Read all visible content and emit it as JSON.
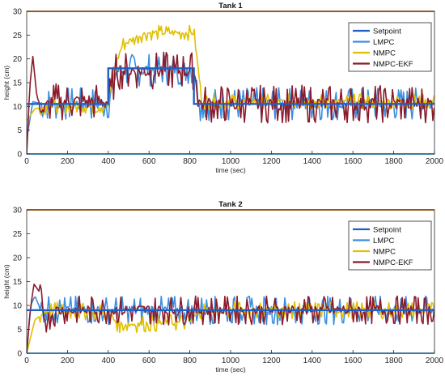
{
  "chart_data": [
    {
      "type": "line",
      "title": "Tank 1",
      "xlabel": "time (sec)",
      "ylabel": "height (cm)",
      "xlim": [
        0,
        2000
      ],
      "ylim": [
        0,
        30
      ],
      "xticks": [
        0,
        200,
        400,
        600,
        800,
        1000,
        1200,
        1400,
        1600,
        1800,
        2000
      ],
      "yticks": [
        0,
        5,
        10,
        15,
        20,
        25,
        30
      ],
      "grid": false,
      "legend_position": "top-right",
      "series": [
        {
          "name": "Setpoint",
          "color": "#1f5fc4",
          "x": [
            0,
            400,
            400,
            820,
            820,
            2000
          ],
          "y": [
            10.5,
            10.5,
            18,
            18,
            10.5,
            10.5
          ]
        },
        {
          "name": "LMPC",
          "color": "#3b8fe0",
          "noise": 3.5,
          "x": [
            0,
            30,
            80,
            400,
            440,
            820,
            850,
            2000
          ],
          "y": [
            3,
            11,
            10.5,
            10.5,
            17.5,
            18,
            10.5,
            10.5
          ]
        },
        {
          "name": "NMPC",
          "color": "#e0c000",
          "noise": 1.6,
          "x": [
            0,
            40,
            100,
            400,
            430,
            470,
            560,
            600,
            820,
            860,
            2000
          ],
          "y": [
            7,
            9.5,
            10,
            10,
            18,
            23,
            25,
            25.5,
            25.5,
            11,
            11
          ]
        },
        {
          "name": "NMPC-EKF",
          "color": "#8b1a2b",
          "noise": 4,
          "x": [
            0,
            15,
            30,
            50,
            80,
            120,
            400,
            440,
            820,
            850,
            2000
          ],
          "y": [
            0,
            14,
            20.5,
            12,
            9,
            11,
            11,
            17.5,
            17.5,
            10.5,
            10.5
          ]
        }
      ]
    },
    {
      "type": "line",
      "title": "Tank 2",
      "xlabel": "time (sec)",
      "ylabel": "height (cm)",
      "xlim": [
        0,
        2000
      ],
      "ylim": [
        0,
        30
      ],
      "xticks": [
        0,
        200,
        400,
        600,
        800,
        1000,
        1200,
        1400,
        1600,
        1800,
        2000
      ],
      "yticks": [
        0,
        5,
        10,
        15,
        20,
        25,
        30
      ],
      "grid": false,
      "legend_position": "top-right",
      "series": [
        {
          "name": "Setpoint",
          "color": "#1f5fc4",
          "x": [
            0,
            2000
          ],
          "y": [
            9,
            9
          ]
        },
        {
          "name": "LMPC",
          "color": "#3b8fe0",
          "noise": 3,
          "x": [
            0,
            20,
            40,
            60,
            100,
            2000
          ],
          "y": [
            0,
            10,
            12,
            10,
            9,
            9
          ]
        },
        {
          "name": "NMPC",
          "color": "#e0c000",
          "noise": 1.8,
          "x": [
            0,
            40,
            100,
            400,
            450,
            800,
            850,
            2000
          ],
          "y": [
            0,
            7,
            9,
            8.5,
            6,
            6.5,
            9,
            9
          ]
        },
        {
          "name": "NMPC-EKF",
          "color": "#8b1a2b",
          "noise": 3,
          "x": [
            0,
            15,
            35,
            60,
            90,
            150,
            2000
          ],
          "y": [
            0,
            8,
            14.5,
            13,
            7,
            9,
            9
          ]
        }
      ]
    }
  ]
}
